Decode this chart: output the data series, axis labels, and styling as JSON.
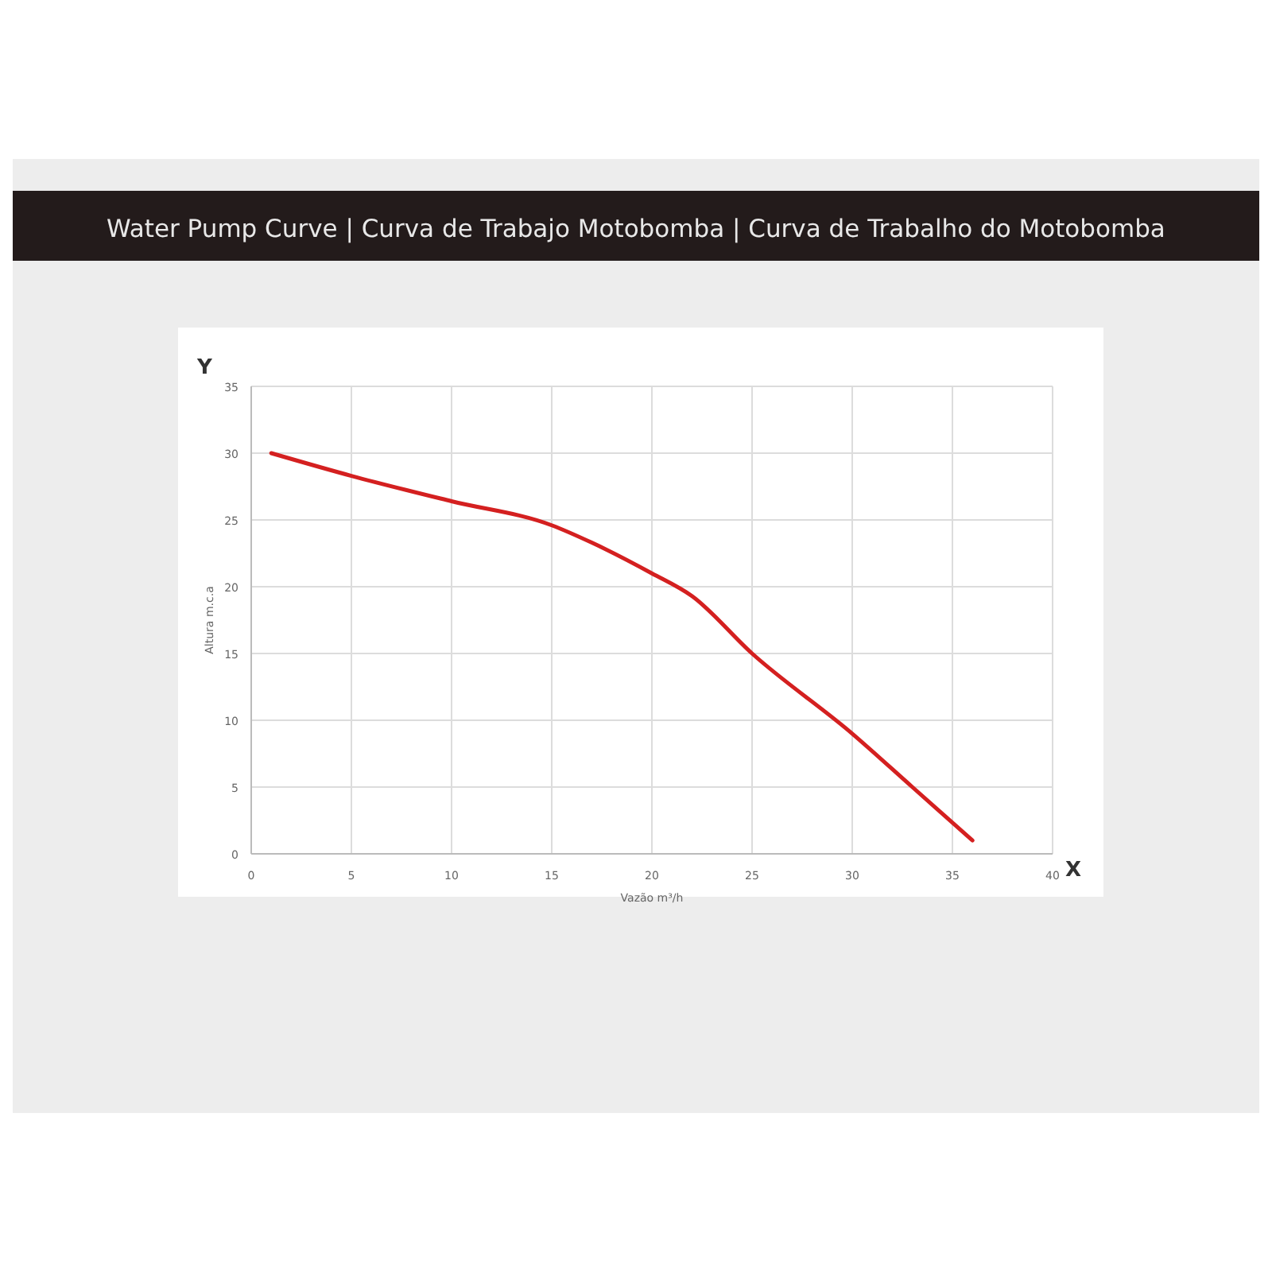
{
  "chart_data": {
    "type": "line",
    "title": "Water Pump Curve | Curva de Trabajo Motobomba | Curva de Trabalho do Motobomba",
    "xlabel": "Vazão m³/h",
    "ylabel": "Altura m.c.a",
    "annotations": [
      "Y",
      "X"
    ],
    "x": [
      1,
      5,
      10,
      15,
      17,
      20,
      22,
      25,
      30,
      33,
      36
    ],
    "series": [
      {
        "color": "#d42020",
        "values": [
          30,
          28.3,
          26.4,
          24.6,
          23.3,
          21,
          19.3,
          15,
          9,
          5,
          1
        ]
      }
    ],
    "xlim": [
      0,
      40
    ],
    "xticks": [
      0,
      5,
      10,
      15,
      20,
      25,
      30,
      35,
      40
    ],
    "ylim": [
      0,
      35
    ],
    "yticks": [
      0,
      5,
      10,
      15,
      20,
      25,
      30,
      35
    ],
    "grid": true,
    "marker": "none",
    "line_style": "solid"
  }
}
